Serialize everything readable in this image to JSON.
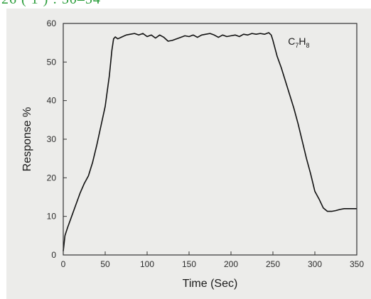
{
  "header": {
    "text": "26 ( 1 ) : 50–54",
    "color": "#2a9d3a"
  },
  "chart_data": {
    "type": "line",
    "xlabel": "Time (Sec)",
    "ylabel": "Response %",
    "xlim": [
      0,
      350
    ],
    "ylim": [
      0,
      60
    ],
    "xticks": [
      0,
      50,
      100,
      150,
      200,
      250,
      300,
      350
    ],
    "yticks": [
      0,
      10,
      20,
      30,
      40,
      50,
      60
    ],
    "grid": false,
    "annotation": {
      "base": "C",
      "sub1": "7",
      "mid": "H",
      "sub2": "8"
    },
    "series": [
      {
        "color": "#111111",
        "x": [
          0,
          2,
          5,
          10,
          15,
          20,
          25,
          30,
          35,
          40,
          45,
          50,
          55,
          58,
          60,
          62,
          65,
          70,
          75,
          80,
          85,
          90,
          95,
          100,
          105,
          110,
          115,
          120,
          125,
          130,
          135,
          140,
          145,
          150,
          155,
          160,
          165,
          170,
          175,
          180,
          185,
          190,
          195,
          200,
          205,
          210,
          215,
          220,
          225,
          230,
          235,
          240,
          245,
          248,
          250,
          255,
          260,
          265,
          270,
          275,
          280,
          285,
          290,
          295,
          300,
          305,
          310,
          315,
          320,
          325,
          330,
          335,
          340,
          345,
          350
        ],
        "y": [
          1,
          5,
          7,
          10,
          13,
          16,
          18.5,
          20.5,
          24,
          28.5,
          33.5,
          38.5,
          46.5,
          53,
          56,
          56.5,
          56,
          56.5,
          57,
          57.2,
          57.4,
          57,
          57.4,
          56.6,
          57,
          56.2,
          57,
          56.4,
          55.4,
          55.6,
          56,
          56.4,
          56.8,
          56.6,
          57,
          56.4,
          57,
          57.2,
          57.4,
          57,
          56.4,
          57,
          56.6,
          56.8,
          57,
          56.6,
          57.2,
          57,
          57.4,
          57.2,
          57.4,
          57.2,
          57.6,
          57,
          55.6,
          51.5,
          48.5,
          45,
          41.5,
          38,
          34,
          29.5,
          25,
          21,
          16.5,
          14.5,
          12.2,
          11.3,
          11.3,
          11.5,
          11.8,
          12,
          12,
          12,
          12
        ]
      }
    ]
  }
}
